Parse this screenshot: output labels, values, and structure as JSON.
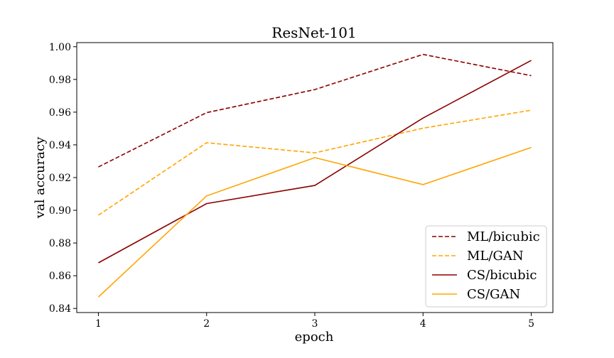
{
  "chart_data": {
    "type": "line",
    "title": "ResNet-101",
    "xlabel": "epoch",
    "ylabel": "val accuracy",
    "x": [
      1,
      2,
      3,
      4,
      5
    ],
    "xticks": [
      "1",
      "2",
      "3",
      "4",
      "5"
    ],
    "yticks": [
      "0.84",
      "0.86",
      "0.88",
      "0.90",
      "0.92",
      "0.94",
      "0.96",
      "0.98",
      "1.00"
    ],
    "ylim": [
      0.8375,
      1.0025
    ],
    "xlim": [
      0.8,
      5.2
    ],
    "grid": false,
    "legend_position": "lower-right",
    "series": [
      {
        "name": "ML/bicubic",
        "color": "#8b0000",
        "dash": "dashed",
        "values": [
          0.9265,
          0.9597,
          0.9738,
          0.9953,
          0.9823
        ]
      },
      {
        "name": "ML/GAN",
        "color": "#ffa500",
        "dash": "dashed",
        "values": [
          0.897,
          0.9413,
          0.9351,
          0.9502,
          0.9612
        ]
      },
      {
        "name": "CS/bicubic",
        "color": "#8b0000",
        "dash": "solid",
        "values": [
          0.8679,
          0.9041,
          0.9152,
          0.9564,
          0.9916
        ]
      },
      {
        "name": "CS/GAN",
        "color": "#ffa500",
        "dash": "solid",
        "values": [
          0.847,
          0.9088,
          0.9322,
          0.9157,
          0.9384
        ]
      }
    ]
  }
}
